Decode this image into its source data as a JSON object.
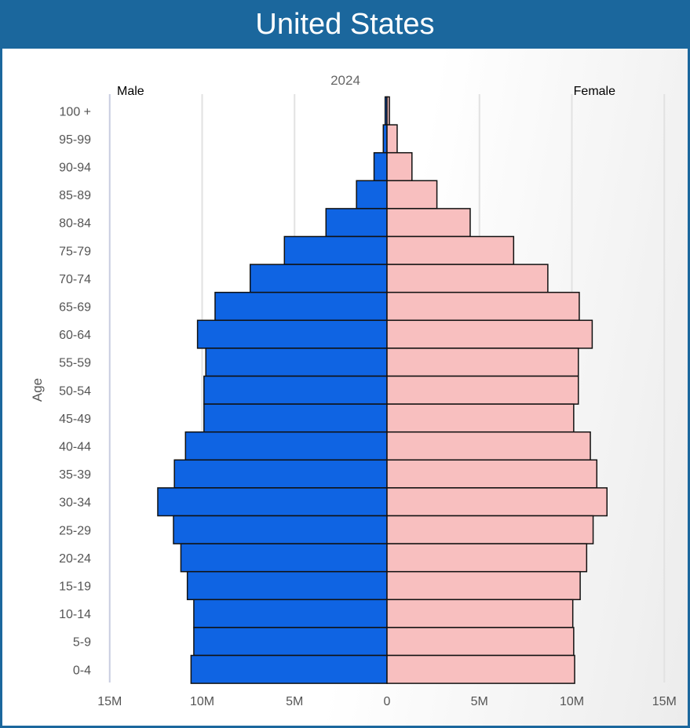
{
  "header": {
    "title": "United States"
  },
  "chart_data": {
    "type": "bar",
    "orientation": "horizontal-population-pyramid",
    "subtitle": "2024",
    "ylabel": "Age",
    "xlabel": "",
    "xlim": [
      -15000000,
      15000000
    ],
    "xticks": [
      -15000000,
      -10000000,
      -5000000,
      0,
      5000000,
      10000000,
      15000000
    ],
    "xtick_labels": [
      "15M",
      "10M",
      "5M",
      "0",
      "5M",
      "10M",
      "15M"
    ],
    "grid": true,
    "categories": [
      "100 +",
      "95-99",
      "90-94",
      "85-89",
      "80-84",
      "75-79",
      "70-74",
      "65-69",
      "60-64",
      "55-59",
      "50-54",
      "45-49",
      "40-44",
      "35-39",
      "30-34",
      "25-29",
      "20-24",
      "15-19",
      "10-14",
      "5-9",
      "0-4"
    ],
    "series": [
      {
        "name": "Male",
        "color": "#0f64e3",
        "values": [
          0.1,
          0.2,
          0.7,
          1.65,
          3.3,
          5.55,
          7.4,
          9.3,
          10.25,
          9.8,
          9.9,
          9.9,
          10.9,
          11.5,
          12.4,
          11.55,
          11.15,
          10.8,
          10.45,
          10.45,
          10.6
        ],
        "unit": "M"
      },
      {
        "name": "Female",
        "color": "#f8bfbf",
        "values": [
          0.13,
          0.55,
          1.35,
          2.7,
          4.5,
          6.85,
          8.7,
          10.4,
          11.1,
          10.35,
          10.35,
          10.1,
          11.0,
          11.35,
          11.9,
          11.15,
          10.8,
          10.45,
          10.05,
          10.1,
          10.15
        ],
        "unit": "M"
      }
    ]
  }
}
